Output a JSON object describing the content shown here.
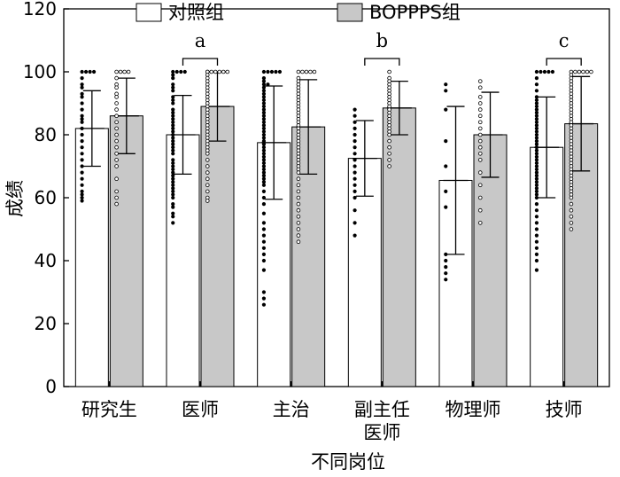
{
  "chart_data": {
    "type": "bar",
    "ylabel": "成绩",
    "xlabel": "不同岗位",
    "ylim": [
      0,
      120
    ],
    "yticks": [
      0,
      20,
      40,
      60,
      80,
      100,
      120
    ],
    "categories": [
      "研究生",
      "医师",
      "主治",
      "副主任医师",
      "物理师",
      "技师"
    ],
    "category_lines": [
      [
        "研究生"
      ],
      [
        "医师"
      ],
      [
        "主治"
      ],
      [
        "副主任",
        "医师"
      ],
      [
        "物理师"
      ],
      [
        "技师"
      ]
    ],
    "series": [
      {
        "name": "对照组",
        "color": "#ffffff",
        "values": [
          82,
          80,
          77.5,
          72.5,
          65.5,
          76
        ],
        "sd": [
          12,
          12.5,
          18,
          12,
          23.5,
          16
        ],
        "points": [
          [
            100,
            100,
            100,
            100,
            98,
            96,
            95,
            93,
            92,
            90,
            88,
            86,
            85,
            84,
            82,
            80,
            78,
            76,
            74,
            72,
            70,
            68,
            66,
            64,
            62,
            61,
            60,
            59
          ],
          [
            100,
            100,
            100,
            100,
            99,
            98,
            96,
            95,
            94,
            92,
            91,
            90,
            88,
            87,
            86,
            85,
            84,
            83,
            82,
            81,
            80,
            79,
            78,
            77,
            76,
            75,
            74,
            72,
            71,
            70,
            69,
            68,
            67,
            66,
            65,
            64,
            63,
            62,
            61,
            60,
            58,
            57,
            55,
            54,
            52
          ],
          [
            100,
            100,
            100,
            100,
            100,
            98,
            97,
            96,
            96,
            95,
            94,
            93,
            92,
            91,
            90,
            89,
            88,
            87,
            86,
            85,
            84,
            83,
            82,
            81,
            80,
            79,
            78,
            77,
            76,
            75,
            74,
            73,
            72,
            71,
            70,
            69,
            68,
            67,
            66,
            65,
            64,
            62,
            60,
            58,
            55,
            52,
            50,
            48,
            46,
            44,
            42,
            40,
            37,
            30,
            28,
            26
          ],
          [
            88,
            86,
            84,
            82,
            80,
            78,
            76,
            74,
            72,
            70,
            68,
            66,
            64,
            62,
            60,
            56,
            52,
            48
          ],
          [
            96,
            94,
            88,
            78,
            70,
            62,
            57,
            42,
            40,
            38,
            36,
            34
          ],
          [
            100,
            100,
            100,
            100,
            100,
            98,
            96,
            94,
            92,
            91,
            90,
            89,
            88,
            87,
            86,
            85,
            84,
            83,
            82,
            81,
            80,
            79,
            78,
            77,
            76,
            75,
            74,
            73,
            72,
            71,
            70,
            69,
            68,
            67,
            66,
            65,
            64,
            63,
            62,
            61,
            60,
            58,
            56,
            54,
            52,
            50,
            48,
            46,
            44,
            42,
            40,
            37
          ]
        ]
      },
      {
        "name": "BOPPPS组",
        "color": "#c8c8c8",
        "values": [
          86,
          89,
          82.5,
          88.5,
          80,
          83.5
        ],
        "sd": [
          12,
          11,
          15,
          8.5,
          13.5,
          15
        ],
        "points": [
          [
            100,
            100,
            100,
            100,
            98,
            96,
            95,
            93,
            92,
            90,
            88,
            86,
            84,
            82,
            80,
            78,
            76,
            74,
            72,
            70,
            66,
            62,
            60,
            58
          ],
          [
            100,
            100,
            100,
            100,
            100,
            100,
            100,
            99,
            98,
            97,
            96,
            95,
            94,
            93,
            92,
            91,
            90,
            89,
            88,
            87,
            86,
            85,
            84,
            83,
            82,
            81,
            80,
            79,
            78,
            77,
            76,
            75,
            74,
            72,
            70,
            68,
            66,
            64,
            62,
            60,
            59
          ],
          [
            100,
            100,
            100,
            100,
            100,
            98,
            97,
            96,
            95,
            94,
            93,
            92,
            91,
            90,
            89,
            88,
            87,
            86,
            85,
            84,
            83,
            82,
            81,
            80,
            79,
            78,
            77,
            76,
            75,
            74,
            73,
            72,
            71,
            70,
            69,
            68,
            66,
            64,
            62,
            60,
            58,
            56,
            54,
            52,
            50,
            48,
            46
          ],
          [
            100,
            98,
            97,
            96,
            95,
            94,
            93,
            92,
            91,
            90,
            89,
            88,
            87,
            86,
            85,
            84,
            83,
            82,
            81,
            80,
            78,
            76,
            74,
            72,
            70
          ],
          [
            97,
            95,
            92,
            90,
            88,
            86,
            84,
            82,
            80,
            78,
            76,
            74,
            72,
            68,
            64,
            60,
            56,
            52
          ],
          [
            100,
            100,
            100,
            100,
            100,
            100,
            99,
            98,
            97,
            96,
            95,
            94,
            93,
            92,
            91,
            90,
            89,
            88,
            87,
            86,
            85,
            84,
            83,
            82,
            81,
            80,
            79,
            78,
            77,
            76,
            75,
            74,
            73,
            72,
            71,
            70,
            69,
            68,
            67,
            66,
            65,
            64,
            63,
            62,
            61,
            60,
            58,
            56,
            54,
            52,
            50
          ]
        ]
      }
    ],
    "significance": [
      {
        "category_index": 1,
        "label": "a"
      },
      {
        "category_index": 3,
        "label": "b"
      },
      {
        "category_index": 5,
        "label": "c"
      }
    ],
    "legend_position": "top"
  }
}
